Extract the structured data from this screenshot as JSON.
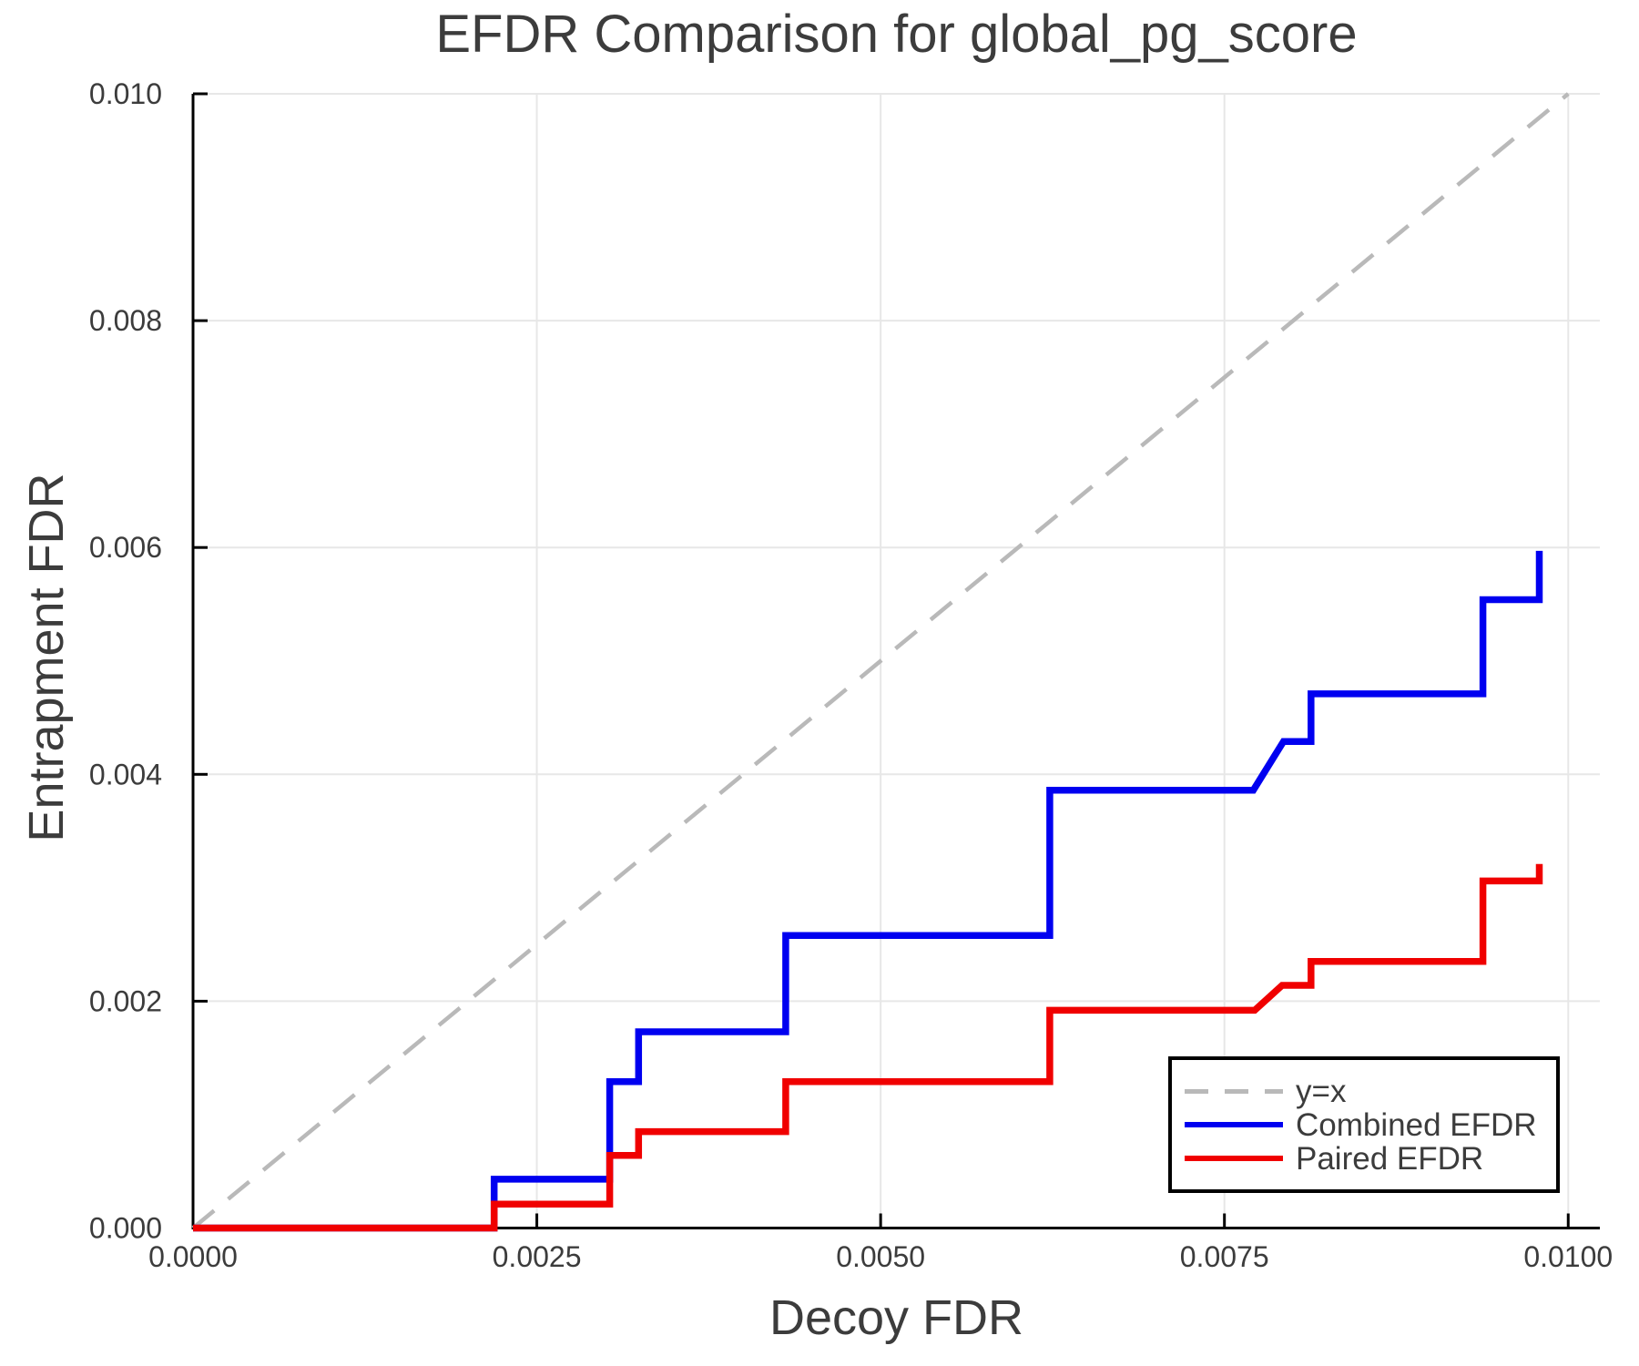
{
  "chart_data": {
    "type": "line",
    "title": "EFDR Comparison for global_pg_score",
    "xlabel": "Decoy FDR",
    "ylabel": "Entrapment FDR",
    "xlim": [
      0.0,
      0.01023
    ],
    "ylim": [
      0.0,
      0.01
    ],
    "grid": true,
    "legend_position": "bottom-right",
    "xticks": {
      "values": [
        0.0,
        0.0025,
        0.005,
        0.0075,
        0.01
      ],
      "labels": [
        "0.0000",
        "0.0025",
        "0.0050",
        "0.0075",
        "0.0100"
      ]
    },
    "yticks": {
      "values": [
        0.0,
        0.002,
        0.004,
        0.006,
        0.008,
        0.01
      ],
      "labels": [
        "0.000",
        "0.002",
        "0.004",
        "0.006",
        "0.008",
        "0.010"
      ]
    },
    "colors": {
      "background": "#ffffff",
      "grid": "#e7e7e7",
      "axis": "#000000",
      "text": "#3c3c3c"
    },
    "series": [
      {
        "id": "y-equals-x",
        "name": "y=x",
        "color": "#b9b9b9",
        "style": "dashed",
        "width": 4.5,
        "points": [
          [
            0.0,
            0.0
          ],
          [
            0.01,
            0.01
          ]
        ]
      },
      {
        "id": "combined-efdr",
        "name": "Combined EFDR",
        "color": "#0000f0",
        "style": "solid",
        "width": 7.5,
        "points": [
          [
            0.0,
            0.0
          ],
          [
            0.00219,
            0.0
          ],
          [
            0.00219,
            0.00043
          ],
          [
            0.00303,
            0.00043
          ],
          [
            0.00303,
            0.00129
          ],
          [
            0.00324,
            0.00129
          ],
          [
            0.00324,
            0.00173
          ],
          [
            0.00431,
            0.00173
          ],
          [
            0.00431,
            0.00258
          ],
          [
            0.00623,
            0.00258
          ],
          [
            0.00623,
            0.00386
          ],
          [
            0.00771,
            0.00386
          ],
          [
            0.00793,
            0.00429
          ],
          [
            0.00813,
            0.00429
          ],
          [
            0.00813,
            0.00471
          ],
          [
            0.00938,
            0.00471
          ],
          [
            0.00938,
            0.00554
          ],
          [
            0.00979,
            0.00554
          ],
          [
            0.00979,
            0.00597
          ]
        ]
      },
      {
        "id": "paired-efdr",
        "name": "Paired EFDR",
        "color": "#f00000",
        "style": "solid",
        "width": 7.5,
        "points": [
          [
            0.0,
            0.0
          ],
          [
            0.00219,
            0.0
          ],
          [
            0.00219,
            0.00021
          ],
          [
            0.00303,
            0.00021
          ],
          [
            0.00303,
            0.00064
          ],
          [
            0.00324,
            0.00064
          ],
          [
            0.00324,
            0.00085
          ],
          [
            0.00431,
            0.00085
          ],
          [
            0.00431,
            0.00129
          ],
          [
            0.00623,
            0.00129
          ],
          [
            0.00623,
            0.00192
          ],
          [
            0.00772,
            0.00192
          ],
          [
            0.00792,
            0.00214
          ],
          [
            0.00813,
            0.00214
          ],
          [
            0.00813,
            0.00235
          ],
          [
            0.00938,
            0.00235
          ],
          [
            0.00938,
            0.00306
          ],
          [
            0.00979,
            0.00306
          ],
          [
            0.00979,
            0.00321
          ]
        ]
      }
    ]
  }
}
